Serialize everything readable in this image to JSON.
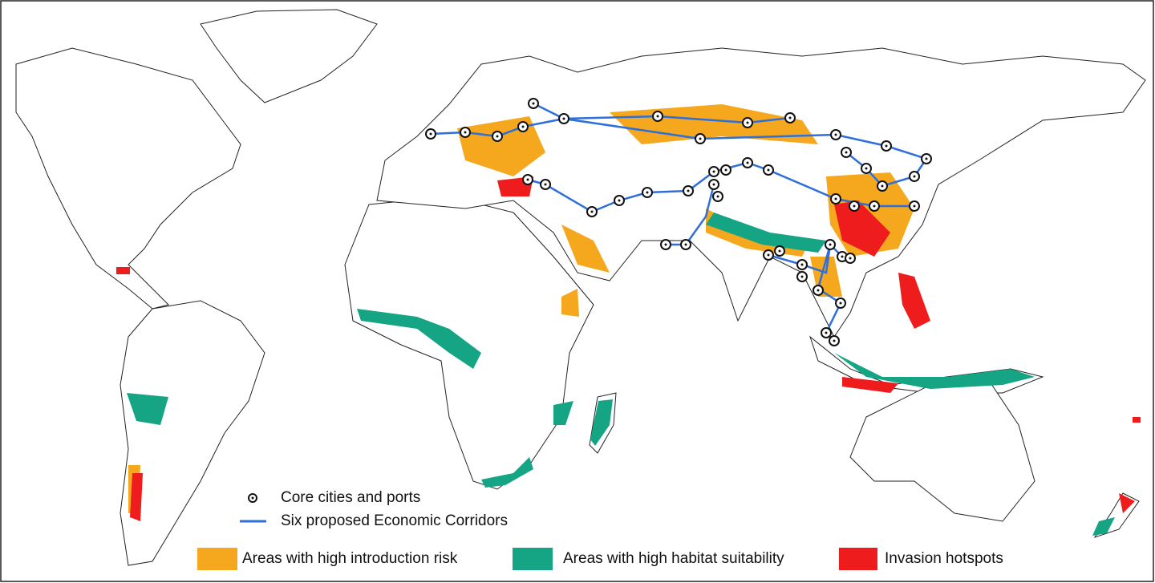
{
  "legend": {
    "items": [
      {
        "label": "Core cities and ports"
      },
      {
        "label": "Six proposed Economic Corridors"
      },
      {
        "label": "Areas with high introduction risk"
      },
      {
        "label": "Areas with high habitat suitability"
      },
      {
        "label": "Invasion hotspots"
      }
    ]
  }
}
